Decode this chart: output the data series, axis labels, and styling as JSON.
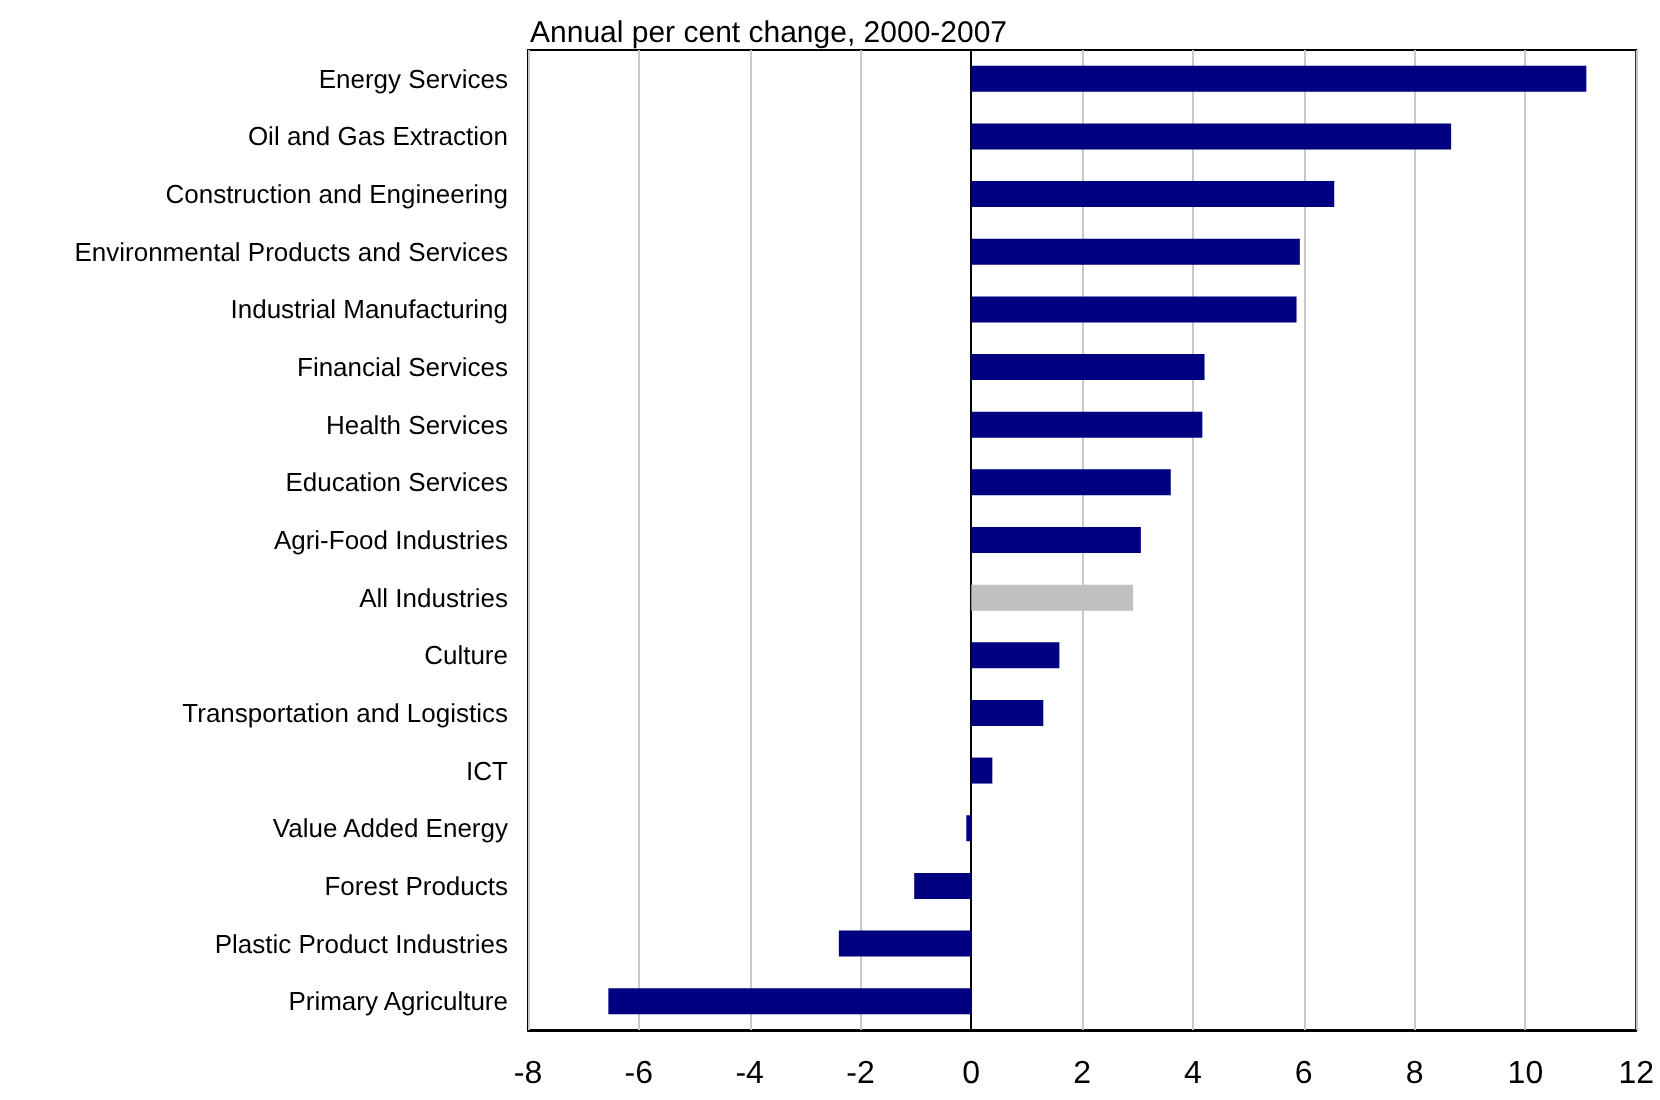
{
  "chart_data": {
    "type": "bar",
    "orientation": "horizontal",
    "title": "Annual per cent change, 2000-2007",
    "categories": [
      "Energy Services",
      "Oil and Gas Extraction",
      "Construction and Engineering",
      "Environmental Products and Services",
      "Industrial Manufacturing",
      "Financial Services",
      "Health Services",
      "Education Services",
      "Agri-Food Industries",
      "All Industries",
      "Culture",
      "Transportation and Logistics",
      "ICT",
      "Value Added Energy",
      "Forest Products",
      "Plastic Product Industries",
      "Primary Agriculture"
    ],
    "values": [
      11.1,
      8.66,
      6.55,
      5.93,
      5.87,
      4.21,
      4.17,
      3.6,
      3.06,
      2.92,
      1.59,
      1.3,
      0.38,
      -0.09,
      -1.03,
      -2.39,
      -6.55
    ],
    "colors": [
      "#000080",
      "#000080",
      "#000080",
      "#000080",
      "#000080",
      "#000080",
      "#000080",
      "#000080",
      "#000080",
      "#c0c0c0",
      "#000080",
      "#000080",
      "#000080",
      "#000080",
      "#000080",
      "#000080",
      "#000080"
    ],
    "xlim": [
      -8,
      12
    ],
    "xticks": [
      -8,
      -6,
      -4,
      -2,
      0,
      2,
      4,
      6,
      8,
      10,
      12
    ],
    "grid": "x"
  }
}
